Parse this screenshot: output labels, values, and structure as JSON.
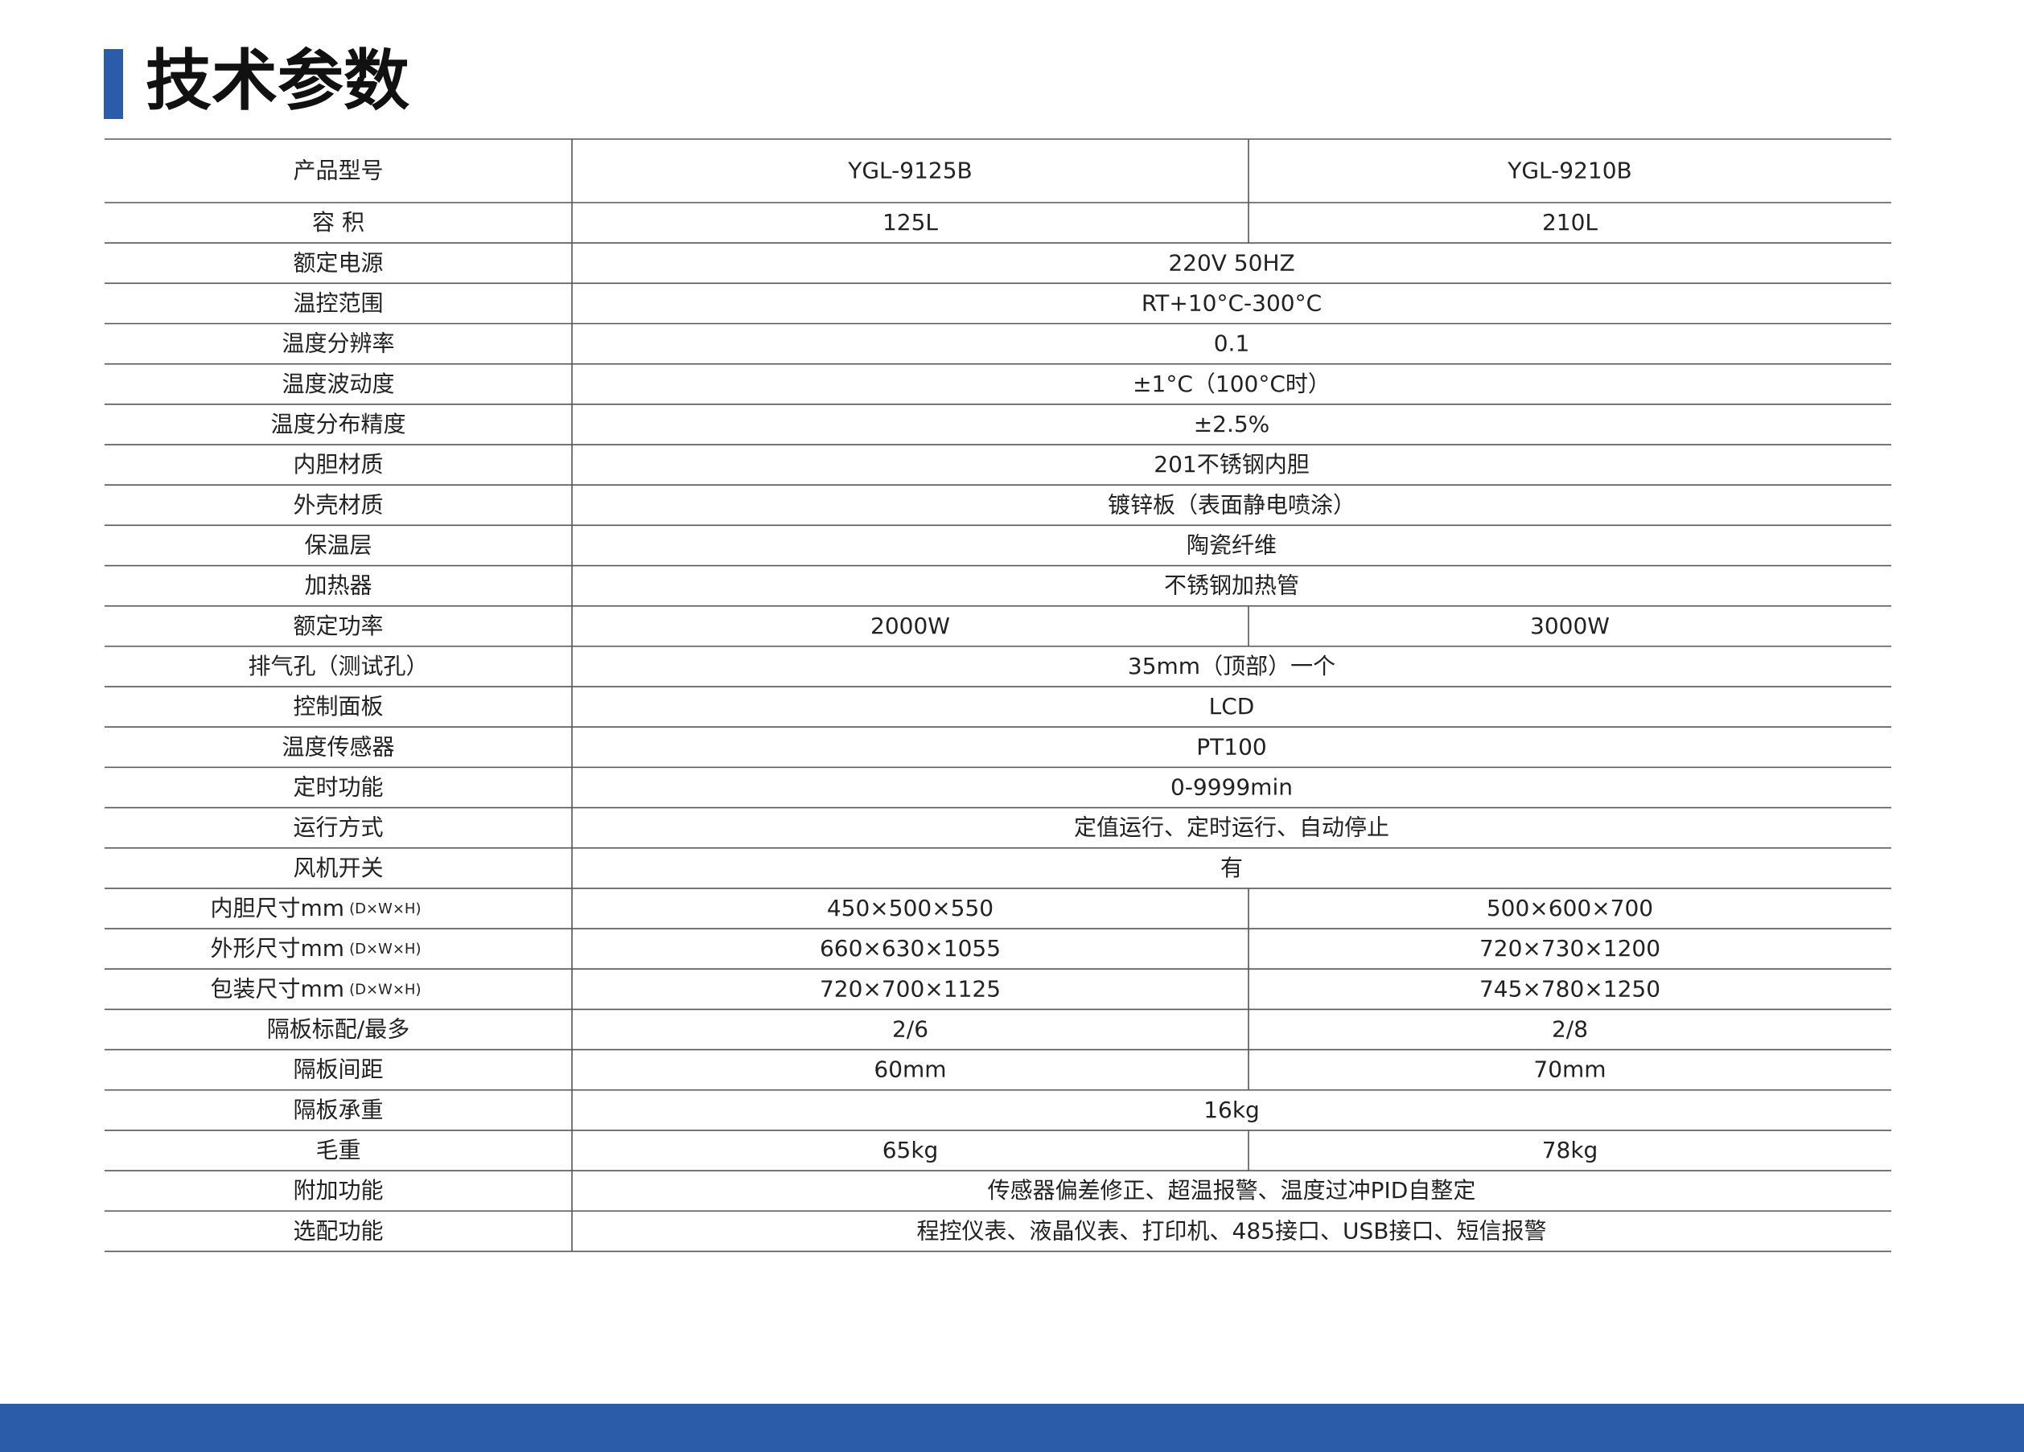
{
  "title": "技术参数",
  "table": {
    "header": {
      "label": "产品型号",
      "values": [
        "YGL-9125B",
        "YGL-9210B"
      ]
    },
    "rows": [
      {
        "label": "容 积",
        "values": [
          "125L",
          "210L"
        ]
      },
      {
        "label": "额定电源",
        "values": [
          "220V 50HZ"
        ]
      },
      {
        "label": "温控范围",
        "values": [
          "RT+10°C-300°C"
        ]
      },
      {
        "label": "温度分辨率",
        "values": [
          "0.1"
        ]
      },
      {
        "label": "温度波动度",
        "values": [
          "±1°C（100°C时）"
        ]
      },
      {
        "label": "温度分布精度",
        "values": [
          "±2.5%"
        ]
      },
      {
        "label": "内胆材质",
        "values": [
          "201不锈钢内胆"
        ]
      },
      {
        "label": "外壳材质",
        "values": [
          "镀锌板（表面静电喷涂）"
        ]
      },
      {
        "label": "保温层",
        "values": [
          "陶瓷纤维"
        ]
      },
      {
        "label": "加热器",
        "values": [
          "不锈钢加热管"
        ]
      },
      {
        "label": "额定功率",
        "values": [
          "2000W",
          "3000W"
        ]
      },
      {
        "label": "排气孔（测试孔）",
        "values": [
          "35mm（顶部）一个"
        ]
      },
      {
        "label": "控制面板",
        "values": [
          "LCD"
        ]
      },
      {
        "label": "温度传感器",
        "values": [
          "PT100"
        ]
      },
      {
        "label": "定时功能",
        "values": [
          "0-9999min"
        ]
      },
      {
        "label": "运行方式",
        "values": [
          "定值运行、定时运行、自动停止"
        ]
      },
      {
        "label": "风机开关",
        "values": [
          "有"
        ]
      },
      {
        "label": "内胆尺寸mm",
        "note": "(D×W×H)",
        "values": [
          "450×500×550",
          "500×600×700"
        ]
      },
      {
        "label": "外形尺寸mm",
        "note": "(D×W×H)",
        "values": [
          "660×630×1055",
          "720×730×1200"
        ]
      },
      {
        "label": "包装尺寸mm",
        "note": "(D×W×H)",
        "values": [
          "720×700×1125",
          "745×780×1250"
        ]
      },
      {
        "label": "隔板标配/最多",
        "values": [
          "2/6",
          "2/8"
        ]
      },
      {
        "label": "隔板间距",
        "values": [
          "60mm",
          "70mm"
        ]
      },
      {
        "label": "隔板承重",
        "values": [
          "16kg"
        ]
      },
      {
        "label": "毛重",
        "values": [
          "65kg",
          "78kg"
        ]
      },
      {
        "label": "附加功能",
        "values": [
          "传感器偏差修正、超温报警、温度过冲PID自整定"
        ]
      },
      {
        "label": "选配功能",
        "values": [
          "程控仪表、液晶仪表、打印机、485接口、USB接口、短信报警"
        ]
      }
    ]
  }
}
